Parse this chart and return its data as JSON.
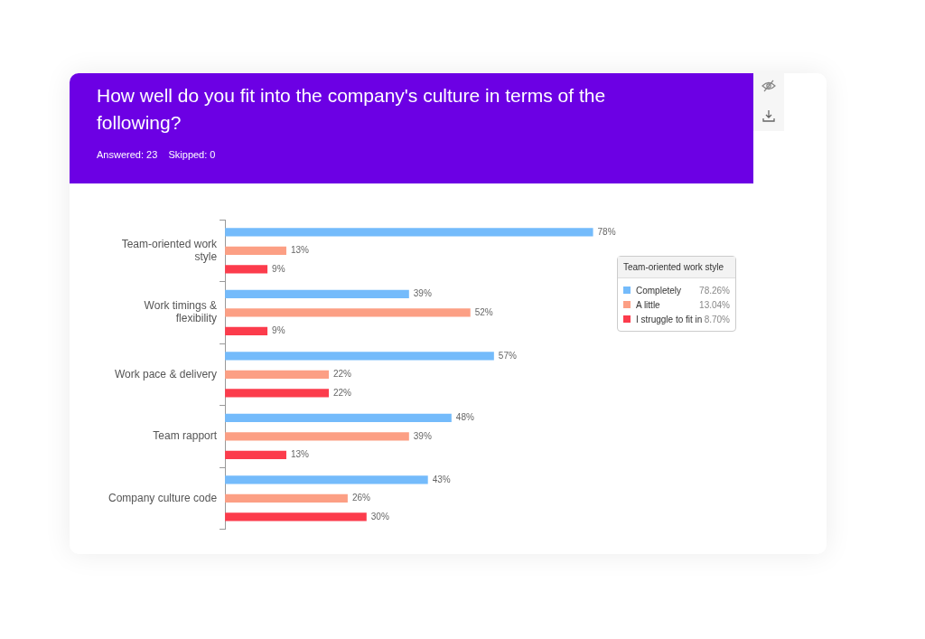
{
  "chart_data": {
    "type": "bar",
    "orientation": "horizontal",
    "title": "How well do you fit into the company's culture in terms of the following?",
    "subtitle": "Answered: 23    Skipped: 0",
    "categories": [
      "Team-oriented work style",
      "Work timings & flexibility",
      "Work pace & delivery",
      "Team rapport",
      "Company culture code"
    ],
    "series": [
      {
        "name": "Completely",
        "color": "#74bbfb",
        "values": [
          78,
          39,
          57,
          48,
          43
        ],
        "value_labels": [
          "78%",
          "39%",
          "57%",
          "48%",
          "43%"
        ]
      },
      {
        "name": "A little",
        "color": "#fc9f84",
        "values": [
          13,
          52,
          22,
          39,
          26
        ],
        "value_labels": [
          "13%",
          "52%",
          "22%",
          "39%",
          "26%"
        ]
      },
      {
        "name": "I struggle to fit in",
        "color": "#fc3c4c",
        "values": [
          9,
          9,
          22,
          13,
          30
        ],
        "value_labels": [
          "9%",
          "9%",
          "22%",
          "13%",
          "30%"
        ]
      }
    ],
    "legend": "right",
    "legend_title": "Team-oriented work style",
    "annotations": [
      "78.26%",
      "13.04%",
      "8.70%"
    ]
  }
}
